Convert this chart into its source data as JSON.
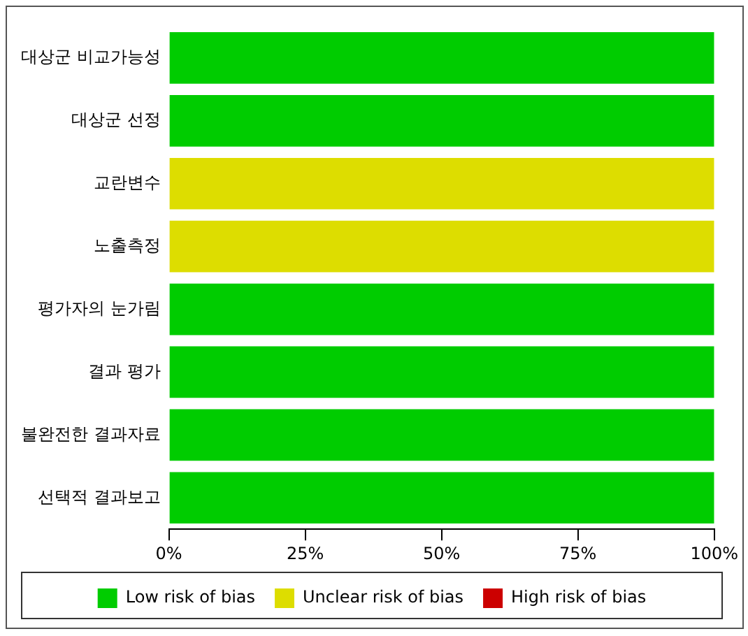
{
  "chart_data": {
    "type": "bar",
    "orientation": "horizontal",
    "stacked": true,
    "categories": [
      "대상군 비교가능성",
      "대상군 선정",
      "교란변수",
      "노출측정",
      "평가자의 눈가림",
      "결과 평가",
      "불완전한 결과자료",
      "선택적 결과보고"
    ],
    "series": [
      {
        "name": "Low risk of bias",
        "color": "#00cc00",
        "values": [
          100,
          100,
          0,
          0,
          100,
          100,
          100,
          100
        ]
      },
      {
        "name": "Unclear risk of bias",
        "color": "#dddd00",
        "values": [
          0,
          0,
          100,
          100,
          0,
          0,
          0,
          0
        ]
      },
      {
        "name": "High risk of bias",
        "color": "#cc0000",
        "values": [
          0,
          0,
          0,
          0,
          0,
          0,
          0,
          0
        ]
      }
    ],
    "xlim": [
      0,
      100
    ],
    "xticks": [
      {
        "value": 0,
        "label": "0%"
      },
      {
        "value": 25,
        "label": "25%"
      },
      {
        "value": 50,
        "label": "50%"
      },
      {
        "value": 75,
        "label": "75%"
      },
      {
        "value": 100,
        "label": "100%"
      }
    ],
    "grid": false,
    "legend": "bottom"
  }
}
